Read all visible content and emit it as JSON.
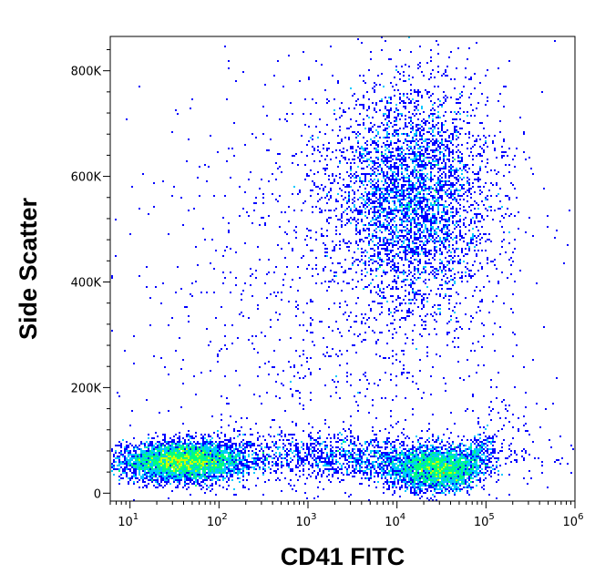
{
  "chart_data": {
    "type": "scatter",
    "title": "",
    "xlabel": "CD41 FITC",
    "ylabel": "Side Scatter",
    "x_scale": "log",
    "xlim": [
      6,
      1000000
    ],
    "ylim": [
      -15000,
      865000
    ],
    "x_ticks": [
      {
        "value": 10,
        "base": "10",
        "exp": "1"
      },
      {
        "value": 100,
        "base": "10",
        "exp": "2"
      },
      {
        "value": 1000,
        "base": "10",
        "exp": "3"
      },
      {
        "value": 10000,
        "base": "10",
        "exp": "4"
      },
      {
        "value": 100000,
        "base": "10",
        "exp": "5"
      },
      {
        "value": 1000000,
        "base": "10",
        "exp": "6"
      }
    ],
    "y_ticks": [
      {
        "value": 0,
        "label": "0"
      },
      {
        "value": 200000,
        "label": "200K"
      },
      {
        "value": 400000,
        "label": "400K"
      },
      {
        "value": 600000,
        "label": "600K"
      },
      {
        "value": 800000,
        "label": "800K"
      }
    ],
    "color_scale": [
      "#0000ff",
      "#00c8ff",
      "#00ff80",
      "#c8ff00",
      "#ff9600",
      "#e00000"
    ],
    "grid": false,
    "populations": [
      {
        "name": "",
        "x_center": 40,
        "x_spread_decades": 0.35,
        "y_center": 60000,
        "y_spread": 18000,
        "weight": 0.32
      },
      {
        "name": "",
        "x_center": 30000,
        "x_spread_decades": 0.3,
        "y_center": 45000,
        "y_spread": 20000,
        "weight": 0.22
      },
      {
        "name": "",
        "x_center": 15000,
        "x_spread_decades": 0.45,
        "y_center": 560000,
        "y_spread": 110000,
        "weight": 0.28
      },
      {
        "name": "",
        "x_center": 3000,
        "x_spread_decades": 0.9,
        "y_center": 70000,
        "y_spread": 22000,
        "weight": 0.1
      },
      {
        "name": "",
        "x_center": 2000,
        "x_spread_decades": 1.2,
        "y_center": 350000,
        "y_spread": 250000,
        "weight": 0.08
      }
    ]
  }
}
